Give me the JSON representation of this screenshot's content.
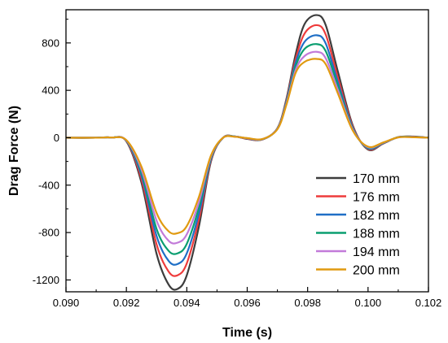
{
  "chart_data": {
    "type": "line",
    "title": "",
    "xlabel": "Time (s)",
    "ylabel": "Drag Force (N)",
    "xlim": [
      0.09,
      0.102
    ],
    "ylim": [
      -1300,
      1080
    ],
    "xticks": [
      "0.090",
      "0.092",
      "0.094",
      "0.096",
      "0.098",
      "0.100",
      "0.102"
    ],
    "yticks": [
      "-1200",
      "-800",
      "-400",
      "0",
      "400",
      "800"
    ],
    "grid": false,
    "legend_position": "bottom-right",
    "x": [
      0.09,
      0.091,
      0.0915,
      0.092,
      0.0925,
      0.093,
      0.0934,
      0.0937,
      0.094,
      0.0944,
      0.0948,
      0.0952,
      0.0956,
      0.096,
      0.0965,
      0.097,
      0.0973,
      0.0976,
      0.0979,
      0.0983,
      0.0986,
      0.099,
      0.0995,
      0.1,
      0.1005,
      0.101,
      0.1015,
      0.102
    ],
    "series": [
      {
        "name": "170 mm",
        "color": "#3d3d3d",
        "values": [
          0,
          0,
          2,
          -30,
          -380,
          -980,
          -1240,
          -1275,
          -1160,
          -750,
          -200,
          0,
          10,
          -10,
          -15,
          80,
          330,
          700,
          960,
          1035,
          950,
          560,
          100,
          -100,
          -50,
          5,
          10,
          0
        ]
      },
      {
        "name": "176 mm",
        "color": "#ee3b3b",
        "values": [
          0,
          0,
          2,
          -28,
          -350,
          -900,
          -1130,
          -1160,
          -1060,
          -690,
          -190,
          0,
          10,
          -8,
          -15,
          80,
          320,
          660,
          880,
          950,
          870,
          510,
          90,
          -95,
          -48,
          5,
          8,
          0
        ]
      },
      {
        "name": "182 mm",
        "color": "#1f6fc6",
        "values": [
          0,
          0,
          2,
          -26,
          -320,
          -830,
          -1040,
          -1065,
          -975,
          -640,
          -180,
          0,
          10,
          -6,
          -14,
          78,
          310,
          630,
          810,
          865,
          795,
          470,
          80,
          -90,
          -46,
          4,
          7,
          0
        ]
      },
      {
        "name": "188 mm",
        "color": "#0a9e70",
        "values": [
          0,
          0,
          2,
          -24,
          -295,
          -770,
          -955,
          -975,
          -895,
          -590,
          -170,
          0,
          10,
          -5,
          -13,
          76,
          300,
          600,
          750,
          790,
          730,
          440,
          72,
          -85,
          -44,
          4,
          6,
          0
        ]
      },
      {
        "name": "194 mm",
        "color": "#c27ad9",
        "values": [
          0,
          0,
          2,
          -22,
          -270,
          -700,
          -870,
          -885,
          -815,
          -545,
          -160,
          0,
          9,
          -4,
          -12,
          74,
          290,
          570,
          690,
          725,
          670,
          405,
          65,
          -80,
          -42,
          3,
          5,
          0
        ]
      },
      {
        "name": "200 mm",
        "color": "#e09a10",
        "values": [
          0,
          0,
          2,
          -20,
          -245,
          -635,
          -790,
          -805,
          -745,
          -500,
          -150,
          0,
          8,
          -3,
          -11,
          72,
          280,
          545,
          640,
          665,
          620,
          375,
          58,
          -75,
          -40,
          3,
          4,
          0
        ]
      }
    ]
  }
}
